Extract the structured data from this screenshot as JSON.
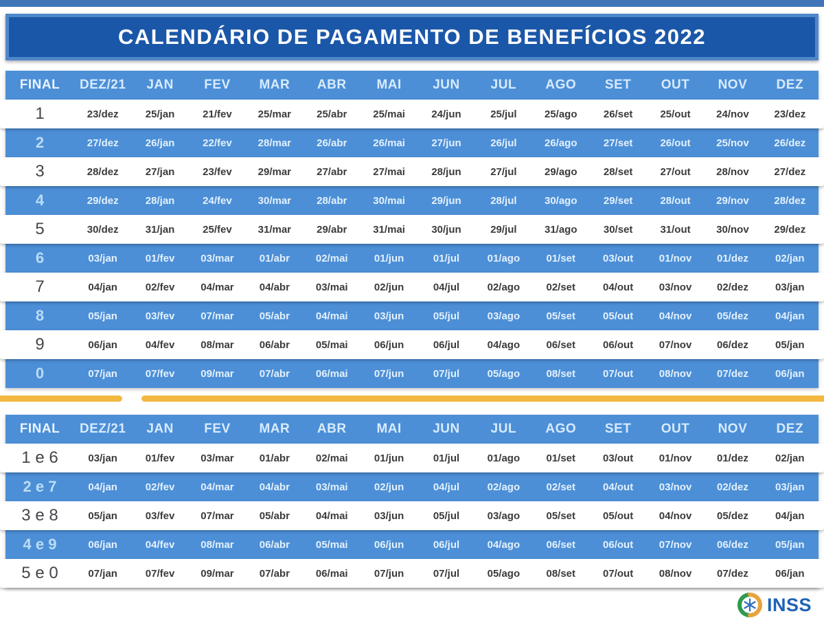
{
  "title": "CALENDÁRIO DE PAGAMENTO DE BENEFÍCIOS 2022",
  "columns": [
    "FINAL",
    "DEZ/21",
    "JAN",
    "FEV",
    "MAR",
    "ABR",
    "MAI",
    "JUN",
    "JUL",
    "AGO",
    "SET",
    "OUT",
    "NOV",
    "DEZ"
  ],
  "table1": {
    "rows": [
      {
        "final": "1",
        "dates": [
          "23/dez",
          "25/jan",
          "21/fev",
          "25/mar",
          "25/abr",
          "25/mai",
          "24/jun",
          "25/jul",
          "25/ago",
          "26/set",
          "25/out",
          "24/nov",
          "23/dez"
        ]
      },
      {
        "final": "2",
        "dates": [
          "27/dez",
          "26/jan",
          "22/fev",
          "28/mar",
          "26/abr",
          "26/mai",
          "27/jun",
          "26/jul",
          "26/ago",
          "27/set",
          "26/out",
          "25/nov",
          "26/dez"
        ]
      },
      {
        "final": "3",
        "dates": [
          "28/dez",
          "27/jan",
          "23/fev",
          "29/mar",
          "27/abr",
          "27/mai",
          "28/jun",
          "27/jul",
          "29/ago",
          "28/set",
          "27/out",
          "28/nov",
          "27/dez"
        ]
      },
      {
        "final": "4",
        "dates": [
          "29/dez",
          "28/jan",
          "24/fev",
          "30/mar",
          "28/abr",
          "30/mai",
          "29/jun",
          "28/jul",
          "30/ago",
          "29/set",
          "28/out",
          "29/nov",
          "28/dez"
        ]
      },
      {
        "final": "5",
        "dates": [
          "30/dez",
          "31/jan",
          "25/fev",
          "31/mar",
          "29/abr",
          "31/mai",
          "30/jun",
          "29/jul",
          "31/ago",
          "30/set",
          "31/out",
          "30/nov",
          "29/dez"
        ]
      },
      {
        "final": "6",
        "dates": [
          "03/jan",
          "01/fev",
          "03/mar",
          "01/abr",
          "02/mai",
          "01/jun",
          "01/jul",
          "01/ago",
          "01/set",
          "03/out",
          "01/nov",
          "01/dez",
          "02/jan"
        ]
      },
      {
        "final": "7",
        "dates": [
          "04/jan",
          "02/fev",
          "04/mar",
          "04/abr",
          "03/mai",
          "02/jun",
          "04/jul",
          "02/ago",
          "02/set",
          "04/out",
          "03/nov",
          "02/dez",
          "03/jan"
        ]
      },
      {
        "final": "8",
        "dates": [
          "05/jan",
          "03/fev",
          "07/mar",
          "05/abr",
          "04/mai",
          "03/jun",
          "05/jul",
          "03/ago",
          "05/set",
          "05/out",
          "04/nov",
          "05/dez",
          "04/jan"
        ]
      },
      {
        "final": "9",
        "dates": [
          "06/jan",
          "04/fev",
          "08/mar",
          "06/abr",
          "05/mai",
          "06/jun",
          "06/jul",
          "04/ago",
          "06/set",
          "06/out",
          "07/nov",
          "06/dez",
          "05/jan"
        ]
      },
      {
        "final": "0",
        "dates": [
          "07/jan",
          "07/fev",
          "09/mar",
          "07/abr",
          "06/mai",
          "07/jun",
          "07/jul",
          "05/ago",
          "08/set",
          "07/out",
          "08/nov",
          "07/dez",
          "06/jan"
        ]
      }
    ]
  },
  "table2": {
    "rows": [
      {
        "final": "1 e 6",
        "dates": [
          "03/jan",
          "01/fev",
          "03/mar",
          "01/abr",
          "02/mai",
          "01/jun",
          "01/jul",
          "01/ago",
          "01/set",
          "03/out",
          "01/nov",
          "01/dez",
          "02/jan"
        ]
      },
      {
        "final": "2 e 7",
        "dates": [
          "04/jan",
          "02/fev",
          "04/mar",
          "04/abr",
          "03/mai",
          "02/jun",
          "04/jul",
          "02/ago",
          "02/set",
          "04/out",
          "03/nov",
          "02/dez",
          "03/jan"
        ]
      },
      {
        "final": "3 e 8",
        "dates": [
          "05/jan",
          "03/fev",
          "07/mar",
          "05/abr",
          "04/mai",
          "03/jun",
          "05/jul",
          "03/ago",
          "05/set",
          "05/out",
          "04/nov",
          "05/dez",
          "04/jan"
        ]
      },
      {
        "final": "4 e 9",
        "dates": [
          "06/jan",
          "04/fev",
          "08/mar",
          "06/abr",
          "05/mai",
          "06/jun",
          "06/jul",
          "04/ago",
          "06/set",
          "06/out",
          "07/nov",
          "06/dez",
          "05/jan"
        ]
      },
      {
        "final": "5 e 0",
        "dates": [
          "07/jan",
          "07/fev",
          "09/mar",
          "07/abr",
          "06/mai",
          "07/jun",
          "07/jul",
          "05/ago",
          "08/set",
          "07/out",
          "08/nov",
          "07/dez",
          "06/jan"
        ]
      }
    ]
  },
  "footer": {
    "logo_text": "INSS"
  },
  "colors": {
    "top_strip": "#3F75B7",
    "banner_bg": "#1B57A8",
    "banner_border": "#4F87CB",
    "header_row_bg": "#4C8FD7",
    "row_blue_bg": "#4C8FD7",
    "row_white_bg": "#FFFFFF",
    "divider_yellow": "#F2B840",
    "text_dark": "#3B3B3D",
    "text_light_blue": "#D8EBFB",
    "logo_blue": "#1E63B5",
    "logo_green": "#2E9A4E",
    "logo_yellow": "#E8A33D"
  }
}
